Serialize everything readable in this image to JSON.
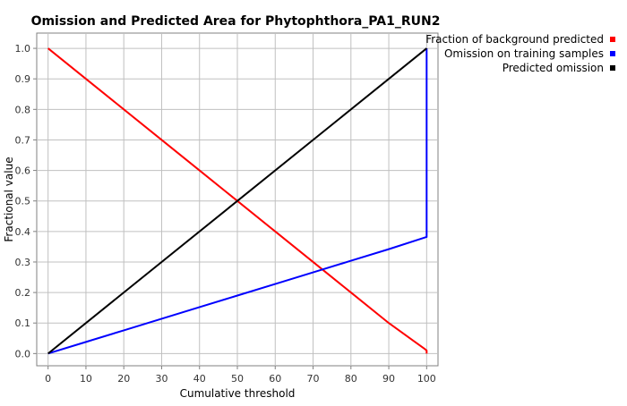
{
  "chart_data": {
    "type": "line",
    "title": "Omission and Predicted Area for Phytophthora_PA1_RUN2",
    "xlabel": "Cumulative threshold",
    "ylabel": "Fractional value",
    "xlim": [
      -3,
      103
    ],
    "ylim": [
      -0.04,
      1.05
    ],
    "x_ticks": [
      0,
      10,
      20,
      30,
      40,
      50,
      60,
      70,
      80,
      90,
      100
    ],
    "y_ticks": [
      0.0,
      0.1,
      0.2,
      0.3,
      0.4,
      0.5,
      0.6,
      0.7,
      0.8,
      0.9,
      1.0
    ],
    "x_tick_labels": [
      "0",
      "10",
      "20",
      "30",
      "40",
      "50",
      "60",
      "70",
      "80",
      "90",
      "100"
    ],
    "y_tick_labels": [
      "0.0",
      "0.1",
      "0.2",
      "0.3",
      "0.4",
      "0.5",
      "0.6",
      "0.7",
      "0.8",
      "0.9",
      "1.0"
    ],
    "grid": true,
    "legend_position": "top-right",
    "series": [
      {
        "name": "Fraction of background predicted",
        "color": "#ff0000",
        "points": [
          [
            0,
            1.0
          ],
          [
            10,
            0.9
          ],
          [
            20,
            0.8
          ],
          [
            30,
            0.7
          ],
          [
            40,
            0.6
          ],
          [
            50,
            0.5
          ],
          [
            60,
            0.4
          ],
          [
            70,
            0.3
          ],
          [
            80,
            0.2
          ],
          [
            90,
            0.1
          ],
          [
            99.5,
            0.015
          ],
          [
            100,
            0.01
          ],
          [
            100,
            0.0
          ]
        ]
      },
      {
        "name": "Omission on training samples",
        "color": "#0000ff",
        "points": [
          [
            0,
            0.0
          ],
          [
            10,
            0.038
          ],
          [
            20,
            0.076
          ],
          [
            30,
            0.114
          ],
          [
            40,
            0.152
          ],
          [
            50,
            0.19
          ],
          [
            60,
            0.228
          ],
          [
            70,
            0.266
          ],
          [
            80,
            0.304
          ],
          [
            90,
            0.342
          ],
          [
            100,
            0.382
          ],
          [
            100,
            1.0
          ]
        ]
      },
      {
        "name": "Predicted omission",
        "color": "#000000",
        "points": [
          [
            0,
            0.0
          ],
          [
            100,
            1.0
          ]
        ]
      }
    ]
  }
}
